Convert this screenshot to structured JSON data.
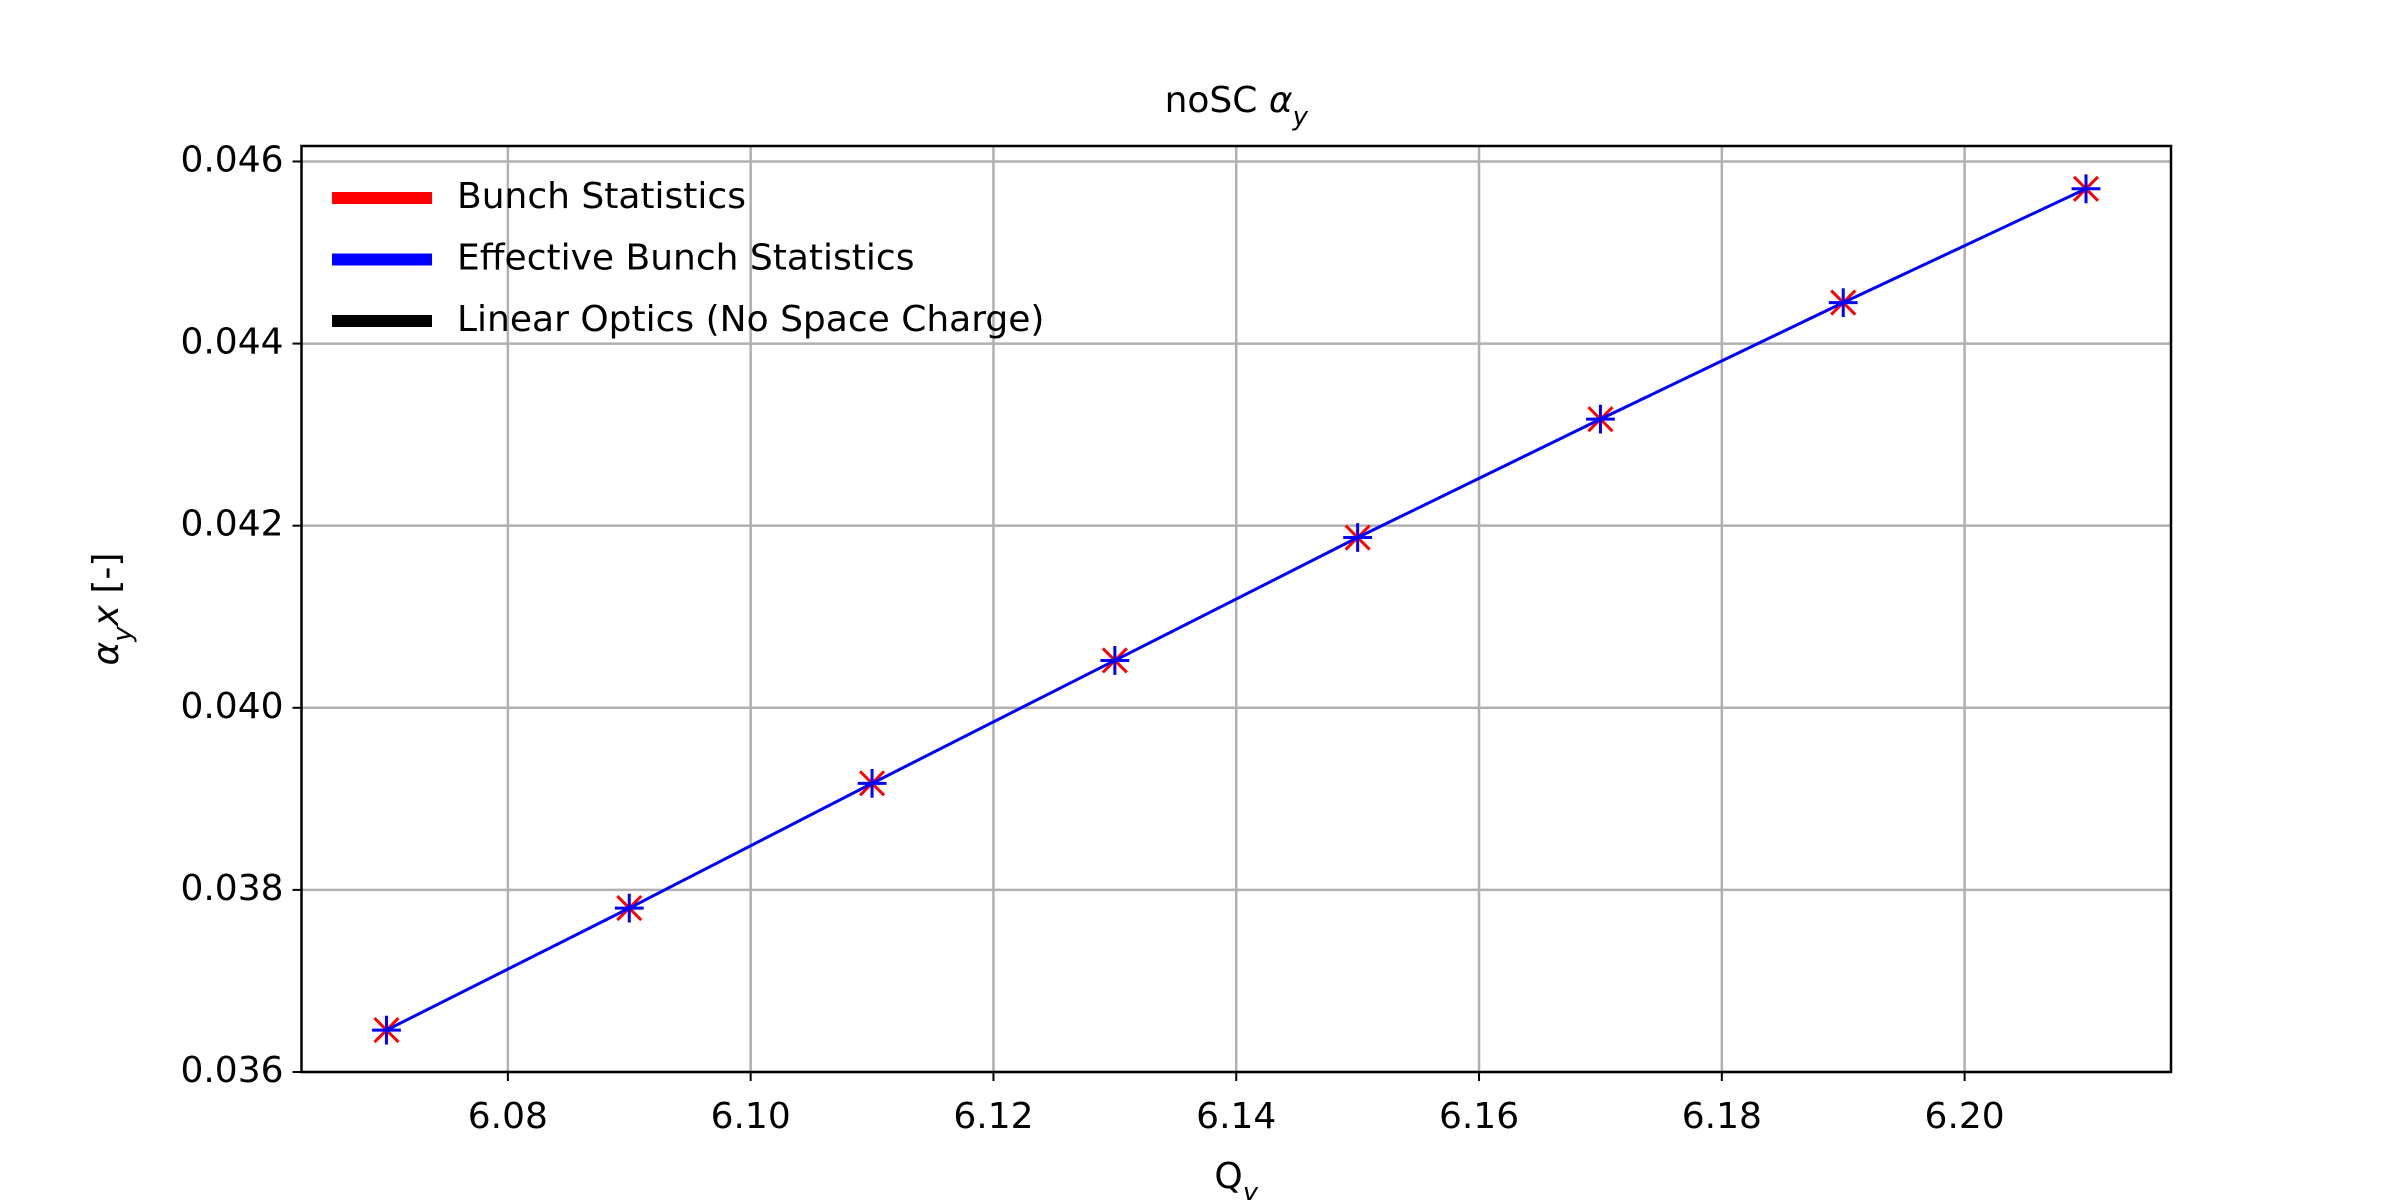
{
  "chart_data": {
    "type": "line",
    "title": [
      {
        "text": "noSC "
      },
      {
        "text": "α",
        "italic": true
      },
      {
        "text": "y",
        "italic": true,
        "sub": true
      }
    ],
    "xlabel": [
      {
        "text": "Q"
      },
      {
        "text": "y",
        "italic": true,
        "sub": true
      }
    ],
    "ylabel": [
      {
        "text": "α",
        "italic": true
      },
      {
        "text": "y",
        "italic": true,
        "sub": true
      },
      {
        "text": "x",
        "italic": true
      },
      {
        "text": " [-]"
      }
    ],
    "x": [
      6.07,
      6.09,
      6.11,
      6.13,
      6.15,
      6.17,
      6.19,
      6.21
    ],
    "series": [
      {
        "name": "Bunch Statistics",
        "color": "#ff0000",
        "marker": "x",
        "line": false,
        "values": [
          0.03646,
          0.0378,
          0.03917,
          0.04052,
          0.04187,
          0.04317,
          0.04445,
          0.0457
        ]
      },
      {
        "name": "Effective Bunch Statistics",
        "color": "#0000ff",
        "marker": "+",
        "line": true,
        "values": [
          0.03646,
          0.0378,
          0.03917,
          0.04052,
          0.04187,
          0.04317,
          0.04445,
          0.0457
        ]
      },
      {
        "name": "Linear Optics (No Space Charge)",
        "color": "#000000"
      }
    ],
    "xlim": [
      6.063,
      6.217
    ],
    "xticks": [
      6.08,
      {
        "value": 6.1,
        "label": "6.10"
      },
      6.12,
      6.14,
      6.16,
      6.18,
      {
        "value": 6.2,
        "label": "6.20"
      }
    ],
    "ylim": [
      0.036,
      0.04617
    ],
    "yticks": [
      0.036,
      0.038,
      {
        "value": 0.04,
        "label": "0.040"
      },
      0.042,
      0.044,
      0.046
    ],
    "grid": true,
    "legend": "upper left"
  }
}
